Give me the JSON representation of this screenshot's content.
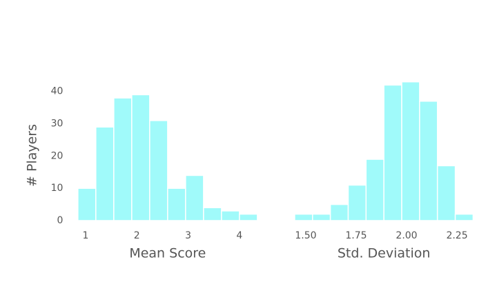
{
  "chart_data": [
    {
      "type": "histogram",
      "xlabel": "Mean Score",
      "ylabel": "# Players",
      "color": "#a0fafa",
      "bins": [
        0.85,
        1.2,
        1.55,
        1.9,
        2.25,
        2.6,
        2.95,
        3.3,
        3.65,
        4.0,
        4.35
      ],
      "values": [
        10,
        29,
        38,
        39,
        31,
        10,
        14,
        4,
        3,
        2
      ],
      "xlim": [
        0.75,
        4.45
      ],
      "xticks": [
        1,
        2,
        3,
        4
      ],
      "ylim": [
        0,
        45.5
      ],
      "yticks": [
        0,
        10,
        20,
        30,
        40
      ]
    },
    {
      "type": "histogram",
      "xlabel": "Std. Deviation",
      "color": "#a0fafa",
      "bins": [
        1.445,
        1.5335,
        1.622,
        1.7105,
        1.799,
        1.8875,
        1.976,
        2.0645,
        2.153,
        2.2415,
        2.33
      ],
      "values": [
        2,
        2,
        5,
        11,
        19,
        42,
        43,
        37,
        17,
        2
      ],
      "xlim": [
        1.42,
        2.355
      ],
      "xticks": [
        {
          "value": 1.5,
          "label": "1.50"
        },
        1.75,
        {
          "value": 2,
          "label": "2.00"
        },
        2.25
      ],
      "ylim": [
        0,
        45.5
      ]
    }
  ]
}
